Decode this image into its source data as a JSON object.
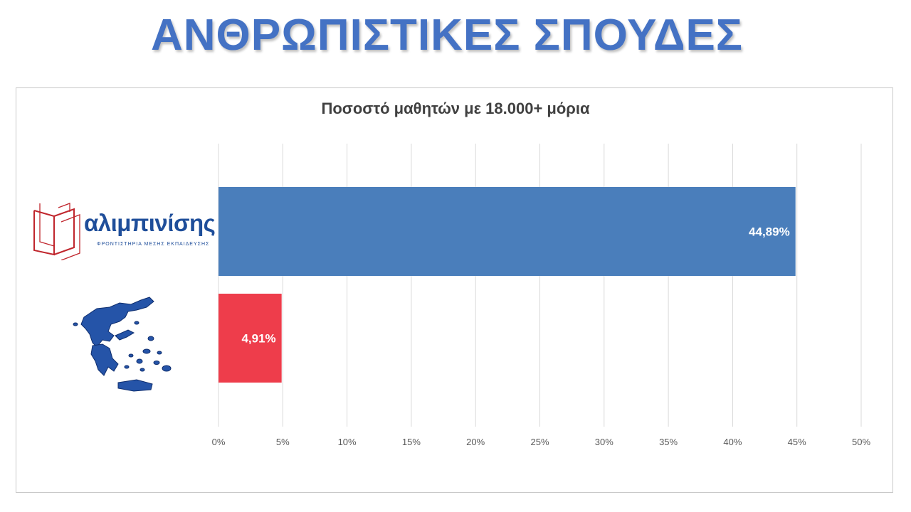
{
  "slide": {
    "title": "ΑΝΘΡΩΠΙΣΤΙΚΕΣ ΣΠΟΥΔΕΣ"
  },
  "logo": {
    "wordmark": "αλιμπινίσης",
    "tagline": "ΦΡΟΝΤΙΣΤΗΡΙΑ ΜΕΣΗΣ ΕΚΠΑΙΔΕΥΣΗΣ"
  },
  "map_icon": "greece-map-icon",
  "colors": {
    "title": "#4472c4",
    "bar_alimpinisis": "#4a7ebb",
    "bar_greece": "#ee3d4b",
    "grid": "#d9d9d9",
    "logo_red": "#c0262d",
    "logo_blue": "#1f4e9a",
    "map_blue": "#2554a8"
  },
  "chart_data": {
    "type": "bar",
    "orientation": "horizontal",
    "title": "Ποσοστό μαθητών με 18.000+ μόρια",
    "categories": [
      "αλιμπινίσης",
      "Ελλάδα"
    ],
    "values": [
      44.89,
      4.91
    ],
    "value_labels": [
      "44,89%",
      "4,91%"
    ],
    "xlim": [
      0,
      50
    ],
    "ticks": [
      0,
      5,
      10,
      15,
      20,
      25,
      30,
      35,
      40,
      45,
      50
    ],
    "tick_labels": [
      "0%",
      "5%",
      "10%",
      "15%",
      "20%",
      "25%",
      "30%",
      "35%",
      "40%",
      "45%",
      "50%"
    ],
    "grid": true,
    "legend": "none"
  }
}
